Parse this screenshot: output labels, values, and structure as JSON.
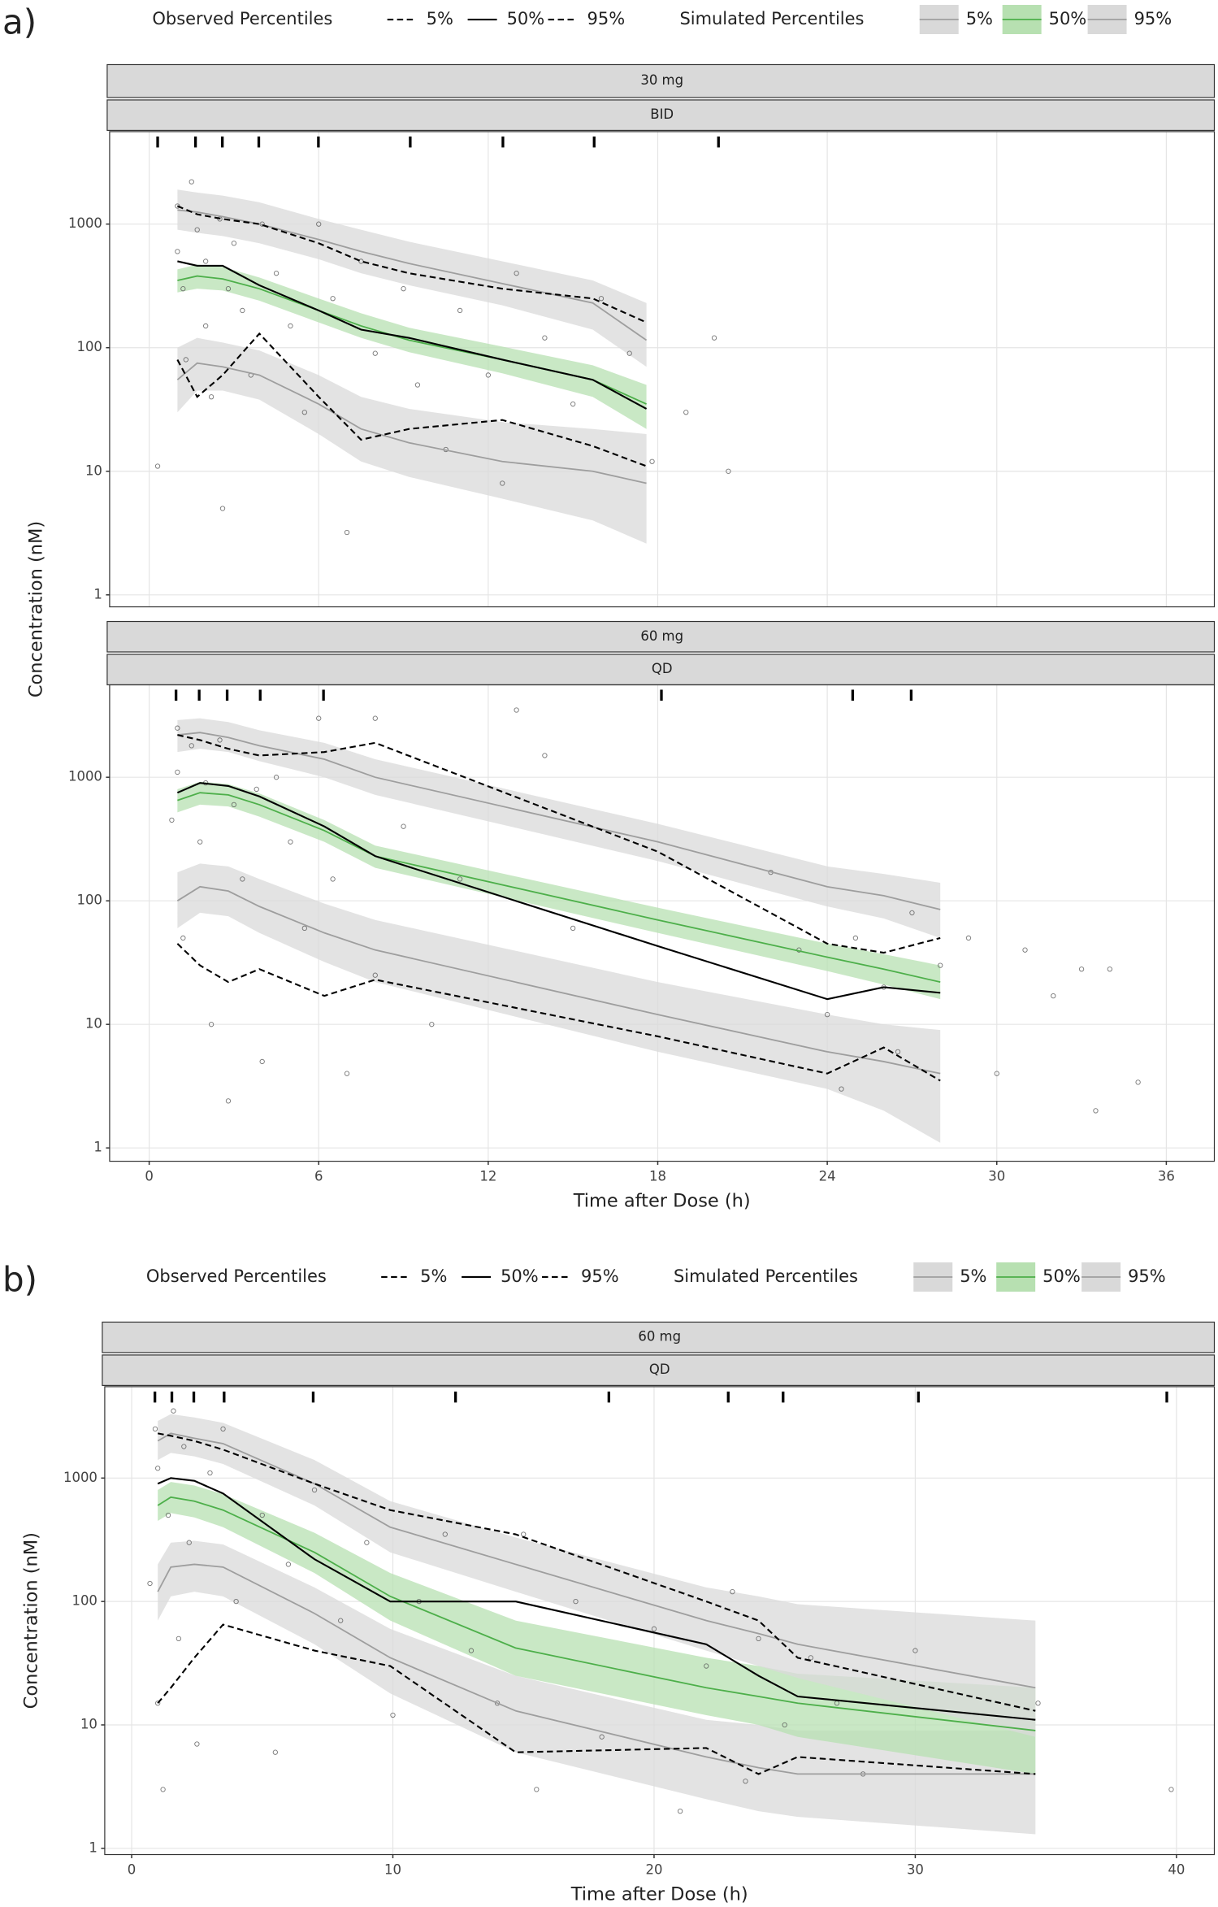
{
  "chart_data": [
    {
      "type": "line",
      "panel_label": "a)",
      "legend": {
        "observed_title": "Observed Percentiles",
        "simulated_title": "Simulated Percentiles"
      },
      "strips": [
        "30 mg",
        "BID"
      ],
      "ylabel": "Concentration (nM)",
      "xlim": [
        -1.4,
        37.7
      ],
      "ylim": [
        0.8,
        5600
      ],
      "log_y": true,
      "grid": true,
      "xticks": [
        0,
        6,
        12,
        18,
        24,
        30,
        36
      ],
      "yticks": [
        1,
        10,
        100,
        1000
      ],
      "x": [
        1,
        1.7,
        2.6,
        3.9,
        6,
        7.5,
        9.2,
        12.5,
        15.7,
        17.6
      ],
      "series": [
        {
          "name": "5%",
          "group": "observed",
          "color": "#000000",
          "dash": true,
          "values": [
            80,
            40,
            60,
            130,
            40,
            18,
            22,
            26,
            16,
            11
          ]
        },
        {
          "name": "50%",
          "group": "observed",
          "color": "#000000",
          "dash": false,
          "values": [
            500,
            460,
            460,
            320,
            200,
            140,
            120,
            80,
            55,
            32
          ]
        },
        {
          "name": "95%",
          "group": "observed",
          "color": "#000000",
          "dash": true,
          "values": [
            1400,
            1200,
            1100,
            1000,
            700,
            500,
            400,
            300,
            250,
            160
          ]
        },
        {
          "name": "5%",
          "group": "simulated",
          "color": "#9e9e9e",
          "band": "#d9d9d9",
          "values": [
            55,
            75,
            70,
            60,
            35,
            22,
            17,
            12,
            10,
            8
          ],
          "lower": [
            30,
            45,
            45,
            38,
            20,
            12,
            9,
            6,
            4,
            2.6
          ],
          "upper": [
            100,
            120,
            110,
            95,
            60,
            40,
            32,
            25,
            22,
            20
          ]
        },
        {
          "name": "50%",
          "group": "simulated",
          "color": "#4daf4a",
          "band": "#b7e0b1",
          "values": [
            350,
            380,
            360,
            300,
            200,
            150,
            115,
            80,
            55,
            35
          ],
          "lower": [
            280,
            300,
            290,
            240,
            160,
            120,
            92,
            62,
            40,
            22
          ],
          "upper": [
            430,
            470,
            450,
            370,
            250,
            190,
            145,
            102,
            72,
            50
          ]
        },
        {
          "name": "95%",
          "group": "simulated",
          "color": "#9e9e9e",
          "band": "#d9d9d9",
          "values": [
            1300,
            1250,
            1150,
            1000,
            750,
            600,
            480,
            330,
            230,
            115
          ],
          "lower": [
            900,
            850,
            800,
            700,
            520,
            400,
            320,
            220,
            140,
            70
          ],
          "upper": [
            1900,
            1800,
            1700,
            1500,
            1100,
            900,
            720,
            500,
            350,
            230
          ]
        }
      ],
      "points": {
        "x": [
          0.3,
          1,
          1,
          1.2,
          1.3,
          1.5,
          1.7,
          2,
          2,
          2.2,
          2.5,
          2.6,
          2.8,
          3,
          3.3,
          3.6,
          4,
          4.5,
          5,
          5.5,
          6,
          6.5,
          7,
          7.5,
          8,
          9,
          9.5,
          10.5,
          11,
          12,
          12.5,
          13,
          14,
          15,
          16,
          17,
          17.8,
          19,
          20,
          20.5
        ],
        "y": [
          11,
          1400,
          600,
          300,
          80,
          2200,
          900,
          500,
          150,
          40,
          1100,
          5,
          300,
          700,
          200,
          60,
          1000,
          400,
          150,
          30,
          1000,
          250,
          3.2,
          500,
          90,
          300,
          50,
          15,
          200,
          60,
          8,
          400,
          120,
          35,
          250,
          90,
          12,
          30,
          120,
          10
        ]
      },
      "rug": [
        0.3,
        1.64,
        2.59,
        3.88,
        5.99,
        9.24,
        12.52,
        15.75,
        20.15
      ]
    },
    {
      "type": "line",
      "strips": [
        "60 mg",
        "QD"
      ],
      "xlabel": "Time after Dose (h)",
      "xlim": [
        -1.4,
        37.7
      ],
      "ylim": [
        0.78,
        5600
      ],
      "log_y": true,
      "grid": true,
      "xticks": [
        0,
        6,
        12,
        18,
        24,
        30,
        36
      ],
      "yticks": [
        1,
        10,
        100,
        1000
      ],
      "x": [
        1,
        1.8,
        2.8,
        3.9,
        6.2,
        8,
        18,
        24,
        26,
        28
      ],
      "series": [
        {
          "name": "5%",
          "group": "observed",
          "color": "#000000",
          "dash": true,
          "values": [
            45,
            30,
            22,
            28,
            17,
            23,
            8,
            4,
            6.5,
            3.5
          ]
        },
        {
          "name": "50%",
          "group": "observed",
          "color": "#000000",
          "dash": false,
          "values": [
            750,
            900,
            850,
            700,
            400,
            230,
            43,
            16,
            20,
            18
          ]
        },
        {
          "name": "95%",
          "group": "observed",
          "color": "#000000",
          "dash": true,
          "values": [
            2200,
            2000,
            1700,
            1500,
            1600,
            1900,
            250,
            45,
            38,
            50
          ]
        },
        {
          "name": "5%",
          "group": "simulated",
          "color": "#9e9e9e",
          "band": "#d9d9d9",
          "values": [
            100,
            130,
            120,
            90,
            55,
            40,
            12,
            6,
            5,
            4
          ],
          "lower": [
            60,
            80,
            75,
            55,
            32,
            22,
            6,
            3,
            2,
            1.1
          ],
          "upper": [
            170,
            200,
            190,
            150,
            95,
            70,
            22,
            12,
            10,
            9
          ]
        },
        {
          "name": "50%",
          "group": "simulated",
          "color": "#4daf4a",
          "band": "#b7e0b1",
          "values": [
            650,
            750,
            720,
            600,
            370,
            230,
            70,
            35,
            28,
            22
          ],
          "lower": [
            520,
            600,
            580,
            480,
            300,
            185,
            55,
            27,
            21,
            16
          ],
          "upper": [
            800,
            920,
            880,
            740,
            450,
            280,
            88,
            45,
            37,
            30
          ]
        },
        {
          "name": "95%",
          "group": "simulated",
          "color": "#9e9e9e",
          "band": "#d9d9d9",
          "values": [
            2200,
            2300,
            2100,
            1800,
            1400,
            1000,
            300,
            130,
            110,
            85
          ],
          "lower": [
            1600,
            1700,
            1600,
            1350,
            1000,
            720,
            210,
            90,
            72,
            50
          ],
          "upper": [
            2900,
            3000,
            2800,
            2400,
            1900,
            1400,
            420,
            190,
            165,
            140
          ]
        }
      ],
      "points": {
        "x": [
          0.8,
          1,
          1,
          1.2,
          1.5,
          1.8,
          2,
          2.2,
          2.5,
          2.8,
          3,
          3.3,
          3.8,
          4,
          4.5,
          5,
          5.5,
          6,
          6.5,
          7,
          8,
          8,
          9,
          10,
          11,
          13,
          14,
          15,
          22,
          23,
          24,
          24.5,
          25,
          26,
          26.5,
          27,
          28,
          29,
          30,
          31,
          32,
          33,
          33.5,
          34,
          35
        ],
        "y": [
          450,
          2500,
          1100,
          50,
          1800,
          300,
          900,
          10,
          2000,
          2.4,
          600,
          150,
          800,
          5,
          1000,
          300,
          60,
          3000,
          150,
          4,
          3000,
          25,
          400,
          10,
          150,
          3500,
          1500,
          60,
          170,
          40,
          12,
          3,
          50,
          20,
          6,
          80,
          30,
          50,
          4,
          40,
          17,
          28,
          2,
          28,
          3.4
        ]
      },
      "rug": [
        0.95,
        1.77,
        2.76,
        3.93,
        6.17,
        18.13,
        24.9,
        26.97
      ]
    },
    {
      "type": "line",
      "panel_label": "b)",
      "legend": {
        "observed_title": "Observed Percentiles",
        "simulated_title": "Simulated Percentiles"
      },
      "strips": [
        "60 mg",
        "QD"
      ],
      "ylabel": "Concentration (nM)",
      "xlabel": "Time after Dose (h)",
      "xlim": [
        -1.03,
        41.45
      ],
      "ylim": [
        0.89,
        5500
      ],
      "log_y": true,
      "grid": true,
      "xticks": [
        0,
        10,
        20,
        30,
        40
      ],
      "yticks": [
        1,
        10,
        100,
        1000
      ],
      "x": [
        1,
        1.5,
        2.4,
        3.5,
        7,
        9.9,
        14.7,
        22,
        24,
        25.5,
        34.6
      ],
      "series": [
        {
          "name": "5%",
          "group": "observed",
          "color": "#000000",
          "dash": true,
          "values": [
            15,
            20,
            35,
            65,
            40,
            30,
            6,
            6.5,
            4,
            5.5,
            4
          ]
        },
        {
          "name": "50%",
          "group": "observed",
          "color": "#000000",
          "dash": false,
          "values": [
            900,
            1000,
            950,
            750,
            220,
            100,
            100,
            45,
            25,
            17,
            11
          ]
        },
        {
          "name": "95%",
          "group": "observed",
          "color": "#000000",
          "dash": true,
          "values": [
            2300,
            2200,
            2000,
            1700,
            900,
            550,
            350,
            100,
            70,
            35,
            13
          ]
        },
        {
          "name": "5%",
          "group": "simulated",
          "color": "#9e9e9e",
          "band": "#d9d9d9",
          "values": [
            120,
            190,
            200,
            190,
            80,
            35,
            13,
            5.5,
            4.5,
            4,
            4
          ],
          "lower": [
            70,
            110,
            120,
            110,
            45,
            18,
            6,
            2.5,
            2,
            1.8,
            1.3
          ],
          "upper": [
            200,
            300,
            310,
            290,
            130,
            60,
            25,
            11,
            10,
            9,
            9
          ]
        },
        {
          "name": "50%",
          "group": "simulated",
          "color": "#4daf4a",
          "band": "#b7e0b1",
          "values": [
            600,
            700,
            650,
            550,
            250,
            110,
            42,
            20,
            17,
            15,
            9
          ],
          "lower": [
            450,
            520,
            480,
            400,
            170,
            70,
            25,
            12,
            10,
            8,
            4
          ],
          "upper": [
            800,
            930,
            870,
            740,
            360,
            170,
            70,
            35,
            30,
            26,
            20
          ]
        },
        {
          "name": "95%",
          "group": "simulated",
          "color": "#9e9e9e",
          "band": "#d9d9d9",
          "values": [
            2000,
            2300,
            2100,
            1900,
            900,
            400,
            200,
            70,
            55,
            45,
            20
          ],
          "lower": [
            1400,
            1600,
            1500,
            1300,
            600,
            250,
            120,
            40,
            30,
            24,
            8
          ],
          "upper": [
            2900,
            3300,
            3100,
            2800,
            1400,
            650,
            330,
            130,
            110,
            95,
            70
          ]
        }
      ],
      "points": {
        "x": [
          0.7,
          0.9,
          1,
          1,
          1.2,
          1.4,
          1.6,
          1.8,
          2,
          2.2,
          2.5,
          3,
          3.5,
          4,
          5,
          5.5,
          6,
          7,
          8,
          9,
          10,
          11,
          12,
          13,
          14,
          15,
          15.5,
          17,
          18,
          20,
          21,
          22,
          23,
          23.5,
          24,
          25,
          26,
          27,
          28,
          30,
          34.7,
          39.8
        ],
        "y": [
          140,
          2500,
          1200,
          15,
          3,
          500,
          3500,
          50,
          1800,
          300,
          7,
          1100,
          2500,
          100,
          500,
          6,
          200,
          800,
          70,
          300,
          12,
          100,
          350,
          40,
          15,
          350,
          3,
          100,
          8,
          60,
          2,
          30,
          120,
          3.5,
          50,
          10,
          35,
          15,
          4,
          40,
          15,
          3
        ]
      },
      "rug": [
        0.89,
        1.54,
        2.38,
        3.54,
        6.95,
        12.4,
        18.27,
        22.84,
        24.94,
        30.12,
        39.63
      ]
    }
  ]
}
